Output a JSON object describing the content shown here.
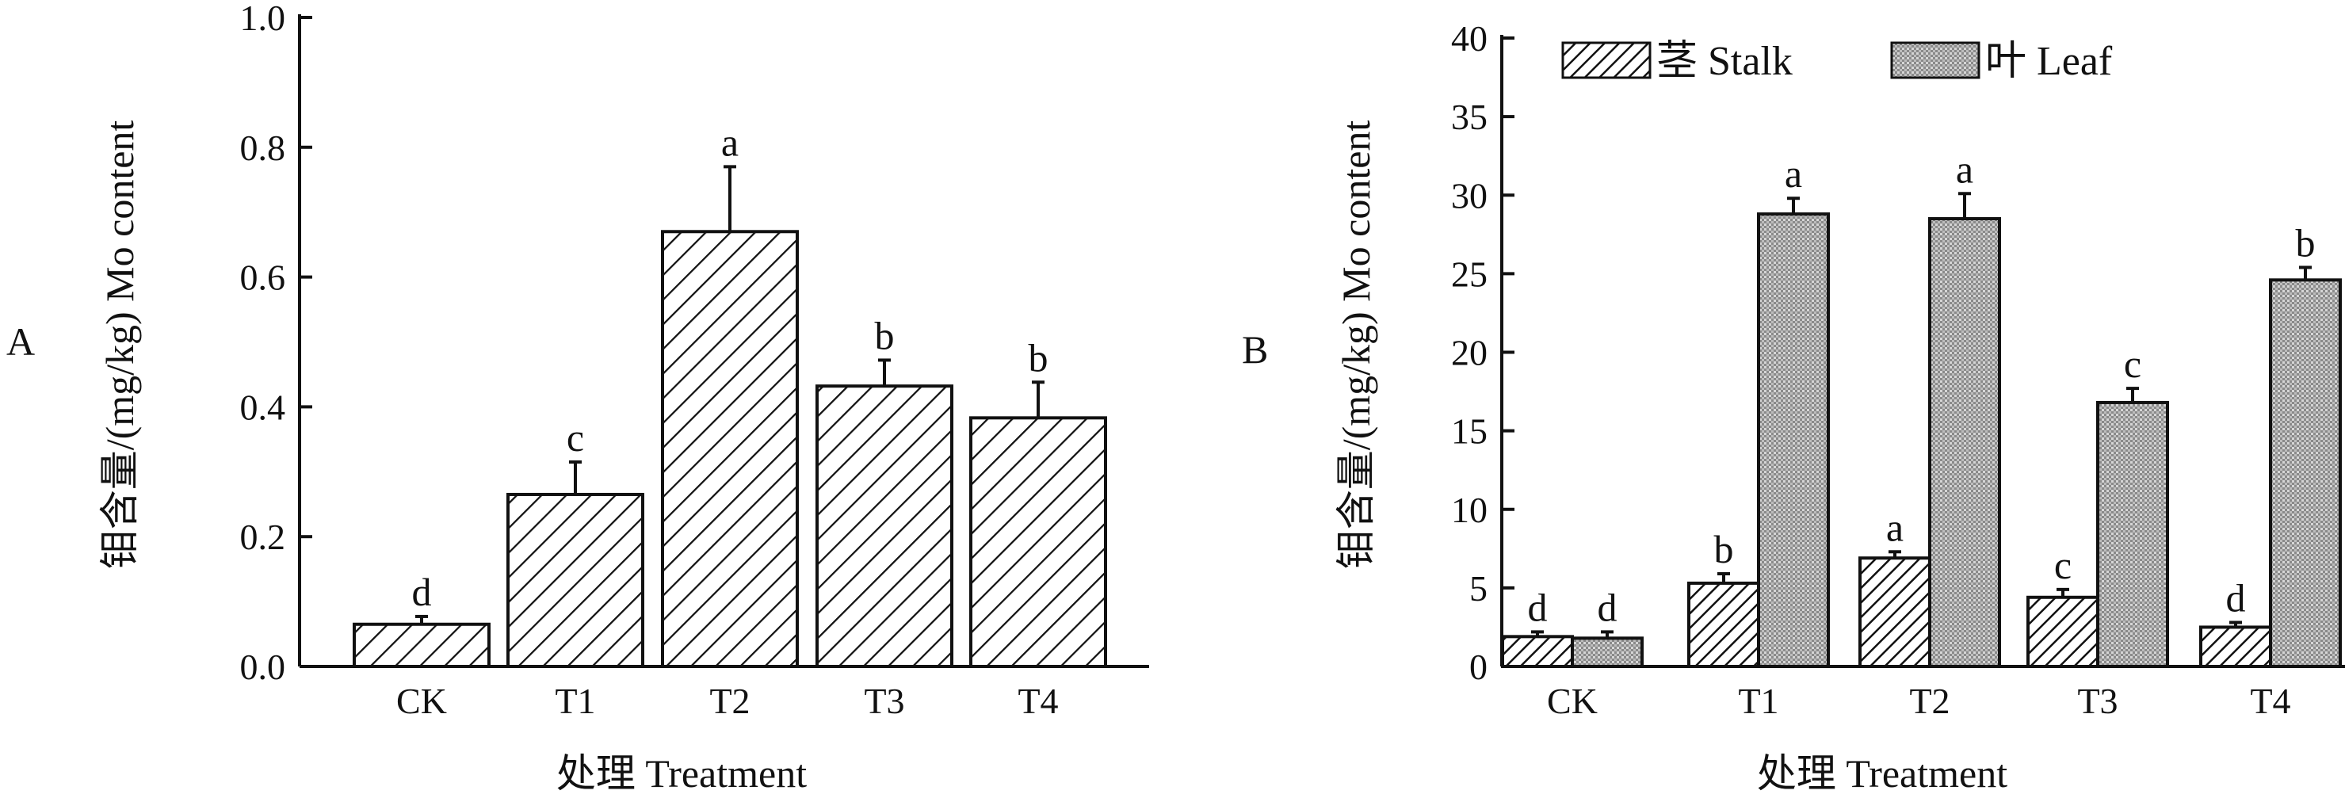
{
  "chart_data": [
    {
      "panel_label": "A",
      "type": "bar",
      "categories": [
        "CK",
        "T1",
        "T2",
        "T3",
        "T4"
      ],
      "series": [
        {
          "values": [
            0.065,
            0.265,
            0.67,
            0.432,
            0.383
          ],
          "errors": [
            0.012,
            0.05,
            0.1,
            0.04,
            0.055
          ],
          "letters": [
            "d",
            "c",
            "a",
            "b",
            "b"
          ],
          "pattern": "diagonal-hatch"
        }
      ],
      "ylabel": "钼含量/(mg/kg) Mo content",
      "xlabel": "处理 Treatment",
      "ylim": [
        0,
        1.0
      ],
      "yticks": [
        "0.0",
        "0.2",
        "0.4",
        "0.6",
        "0.8",
        "1.0"
      ],
      "grid": false
    },
    {
      "panel_label": "B",
      "type": "bar",
      "categories": [
        "CK",
        "T1",
        "T2",
        "T3",
        "T4"
      ],
      "series": [
        {
          "name": "茎 Stalk",
          "values": [
            1.9,
            5.3,
            6.9,
            4.4,
            2.5
          ],
          "errors": [
            0.3,
            0.6,
            0.4,
            0.5,
            0.3
          ],
          "letters": [
            "d",
            "b",
            "a",
            "c",
            "d"
          ],
          "pattern": "dense-diagonal-hatch"
        },
        {
          "name": "叶 Leaf",
          "values": [
            1.8,
            28.8,
            28.5,
            16.8,
            24.6
          ],
          "errors": [
            0.4,
            1.0,
            1.6,
            0.9,
            0.8
          ],
          "letters": [
            "d",
            "a",
            "a",
            "c",
            "b"
          ],
          "pattern": "gray-stipple"
        }
      ],
      "ylabel": "钼含量/(mg/kg) Mo content",
      "xlabel": "处理 Treatment",
      "ylim": [
        0,
        40
      ],
      "yticks": [
        "0",
        "5",
        "10",
        "15",
        "20",
        "25",
        "30",
        "35",
        "40"
      ],
      "legend_position": "top",
      "grid": false
    }
  ]
}
